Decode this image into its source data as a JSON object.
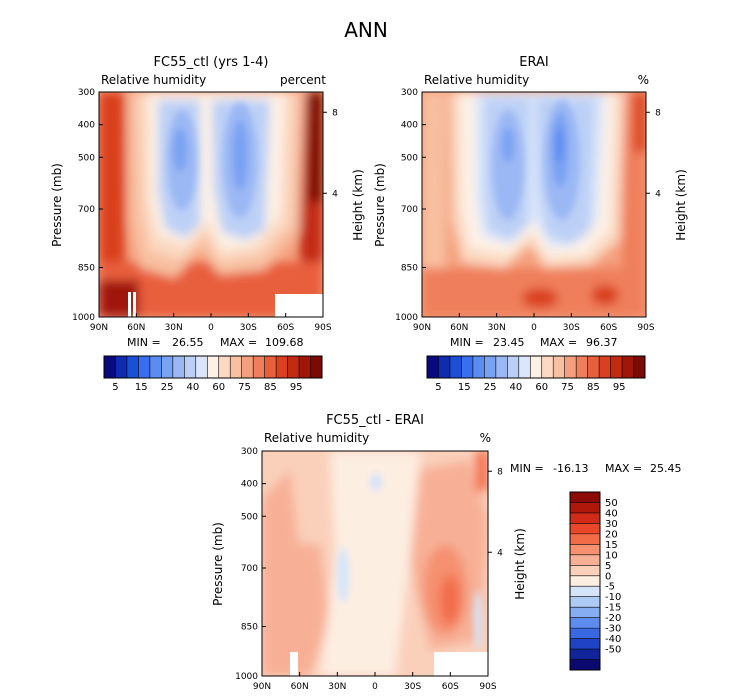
{
  "page": {
    "title": "ANN"
  },
  "chart_data": [
    {
      "type": "heatmap",
      "title": "FC55_ctl (yrs 1-4)",
      "left_label": "Relative humidity",
      "right_label": "percent",
      "xlabel": "",
      "ylabel": "Pressure (mb)",
      "y2label": "Height (km)",
      "x_ticks": [
        "90N",
        "60N",
        "30N",
        "0",
        "30S",
        "60S",
        "90S"
      ],
      "y_ticks": [
        "300",
        "400",
        "500",
        "700",
        "850",
        "1000"
      ],
      "y2_ticks": [
        "8",
        "4"
      ],
      "xlim": [
        90,
        -90
      ],
      "ylim": [
        1000,
        300
      ],
      "min_label": "MIN =",
      "min_value": "26.55",
      "max_label": "MAX =",
      "max_value": "109.68",
      "colorbar": {
        "orientation": "horizontal",
        "labels": [
          "5",
          "15",
          "25",
          "40",
          "60",
          "75",
          "85",
          "95"
        ],
        "colors": [
          "#0a0a80",
          "#0f2bb0",
          "#1a4fd6",
          "#3a6ef0",
          "#5b8cf2",
          "#7aa2f2",
          "#9bb8f4",
          "#bcd0f6",
          "#dbe6fa",
          "#fdf1e6",
          "#fbd9c2",
          "#f8bfa0",
          "#f4a07e",
          "#ef7f5c",
          "#e85f3c",
          "#d9401f",
          "#c22a12",
          "#a01708",
          "#7a0a04"
        ]
      }
    },
    {
      "type": "heatmap",
      "title": "ERAI",
      "left_label": "Relative humidity",
      "right_label": "%",
      "xlabel": "",
      "ylabel": "Pressure (mb)",
      "y2label": "Height (km)",
      "x_ticks": [
        "90N",
        "60N",
        "30N",
        "0",
        "30S",
        "60S",
        "90S"
      ],
      "y_ticks": [
        "300",
        "400",
        "500",
        "700",
        "850",
        "1000"
      ],
      "y2_ticks": [
        "8",
        "4"
      ],
      "xlim": [
        90,
        -90
      ],
      "ylim": [
        1000,
        300
      ],
      "min_label": "MIN =",
      "min_value": "23.45",
      "max_label": "MAX =",
      "max_value": "96.37",
      "colorbar": {
        "orientation": "horizontal",
        "labels": [
          "5",
          "15",
          "25",
          "40",
          "60",
          "75",
          "85",
          "95"
        ],
        "colors": [
          "#0a0a80",
          "#0f2bb0",
          "#1a4fd6",
          "#3a6ef0",
          "#5b8cf2",
          "#7aa2f2",
          "#9bb8f4",
          "#bcd0f6",
          "#dbe6fa",
          "#fdf1e6",
          "#fbd9c2",
          "#f8bfa0",
          "#f4a07e",
          "#ef7f5c",
          "#e85f3c",
          "#d9401f",
          "#c22a12",
          "#a01708",
          "#7a0a04"
        ]
      }
    },
    {
      "type": "heatmap",
      "title": "FC55_ctl - ERAI",
      "left_label": "Relative humidity",
      "right_label": "%",
      "xlabel": "",
      "ylabel": "Pressure (mb)",
      "y2label": "Height (km)",
      "x_ticks": [
        "90N",
        "60N",
        "30N",
        "0",
        "30S",
        "60S",
        "90S"
      ],
      "y_ticks": [
        "300",
        "400",
        "500",
        "700",
        "850",
        "1000"
      ],
      "y2_ticks": [
        "8",
        "4"
      ],
      "xlim": [
        90,
        -90
      ],
      "ylim": [
        1000,
        300
      ],
      "min_label": "MIN =",
      "min_value": "-16.13",
      "max_label": "MAX =",
      "max_value": "25.45",
      "colorbar": {
        "orientation": "vertical",
        "labels": [
          "50",
          "40",
          "30",
          "20",
          "15",
          "10",
          "5",
          "0",
          "-5",
          "-10",
          "-15",
          "-20",
          "-30",
          "-40",
          "-50"
        ],
        "colors": [
          "#8b0a06",
          "#b0180c",
          "#d02a18",
          "#e8472a",
          "#f26c48",
          "#f59070",
          "#f7b096",
          "#fad0bb",
          "#fdeee2",
          "#d6e4fb",
          "#aecbf6",
          "#86acf2",
          "#5e8cee",
          "#3a68e2",
          "#2042c4",
          "#12249a",
          "#0a0a70"
        ]
      }
    }
  ]
}
